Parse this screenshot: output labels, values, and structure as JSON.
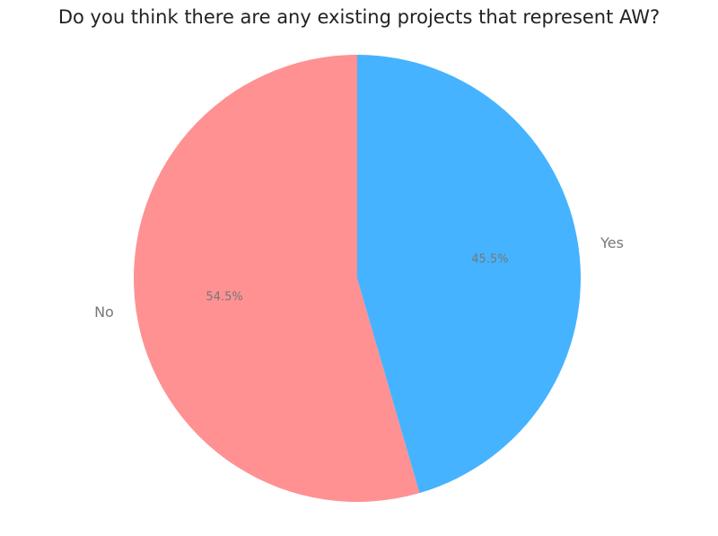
{
  "chart_data": {
    "type": "pie",
    "title": "Do you think there are any existing projects that represent AW?",
    "categories": [
      "No",
      "Yes"
    ],
    "values": [
      54.5,
      45.5
    ],
    "value_labels": [
      "54.5%",
      "45.5%"
    ],
    "colors": [
      "#ff9193",
      "#45b3ff"
    ]
  }
}
